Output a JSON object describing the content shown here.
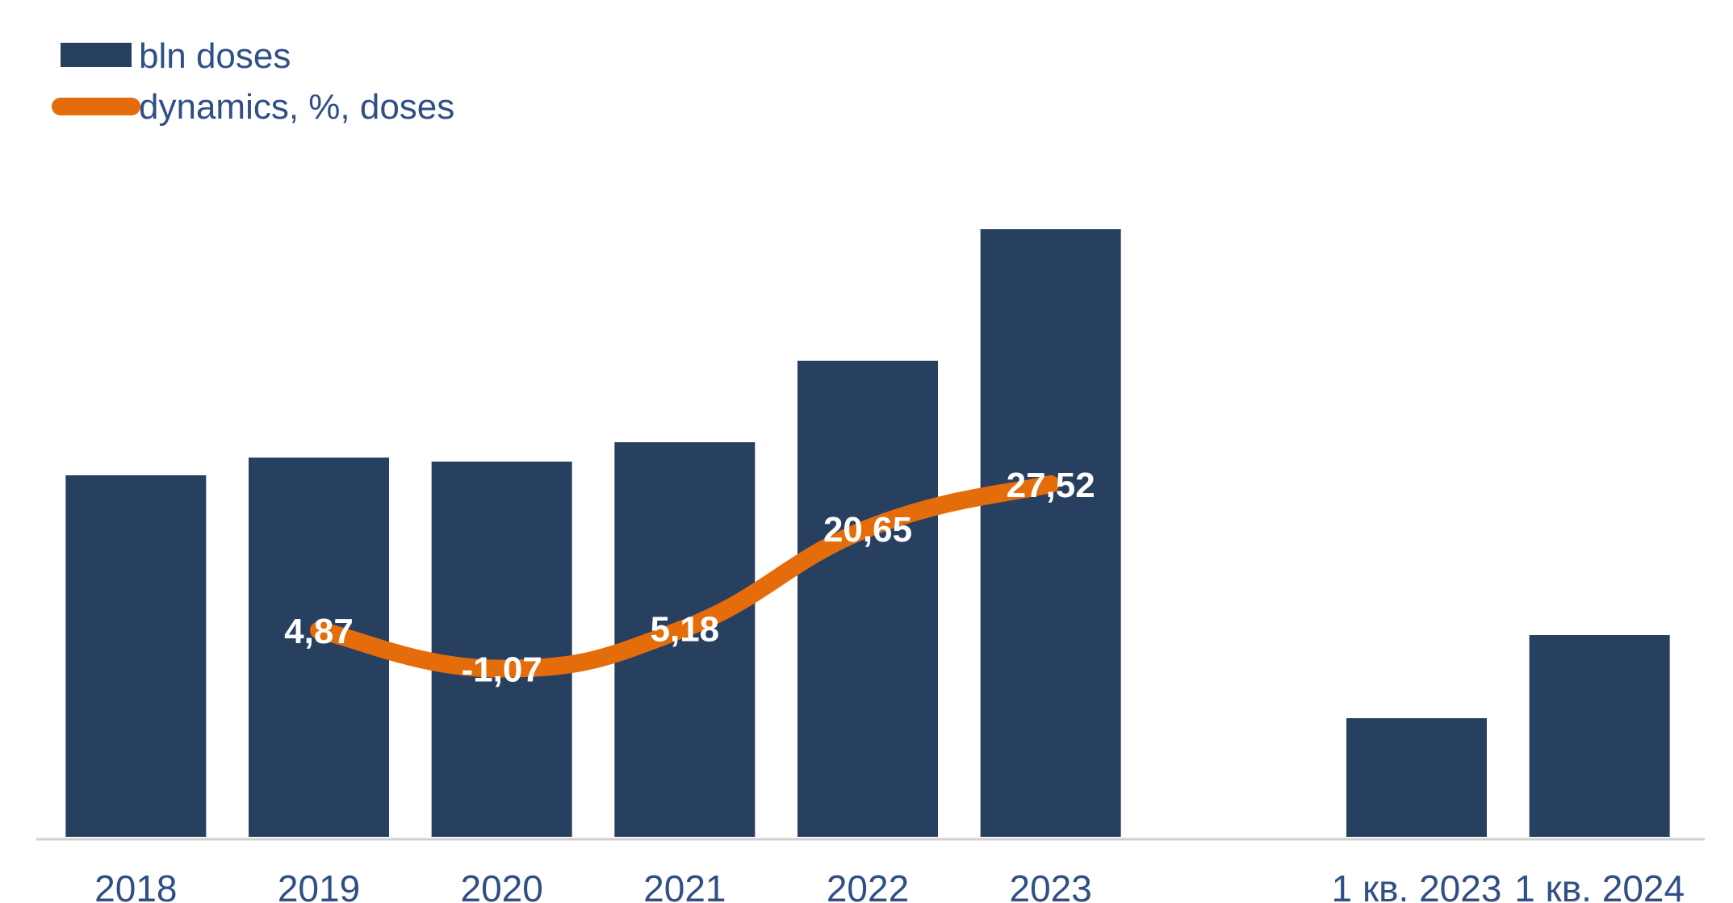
{
  "chart_data": {
    "type": "bar",
    "categories": [
      "2018",
      "2019",
      "2020",
      "2021",
      "2022",
      "2023",
      "",
      "1 кв. 2023",
      "1 кв. 2024"
    ],
    "series": [
      {
        "name": "bln doses",
        "type": "bar",
        "color": "#284060",
        "values": [
          4.48,
          4.7,
          4.65,
          4.89,
          5.9,
          7.53,
          null,
          1.47,
          2.5
        ]
      },
      {
        "name": "dynamics, %, doses",
        "type": "line",
        "color": "#e46c0a",
        "values": [
          null,
          4.87,
          -1.07,
          5.18,
          20.65,
          27.52,
          null,
          null,
          null
        ],
        "labels": [
          "",
          "4,87",
          "-1,07",
          "5,18",
          "20,65",
          "27,52",
          "",
          "",
          ""
        ]
      }
    ],
    "legend": "top-left",
    "grid": false
  }
}
